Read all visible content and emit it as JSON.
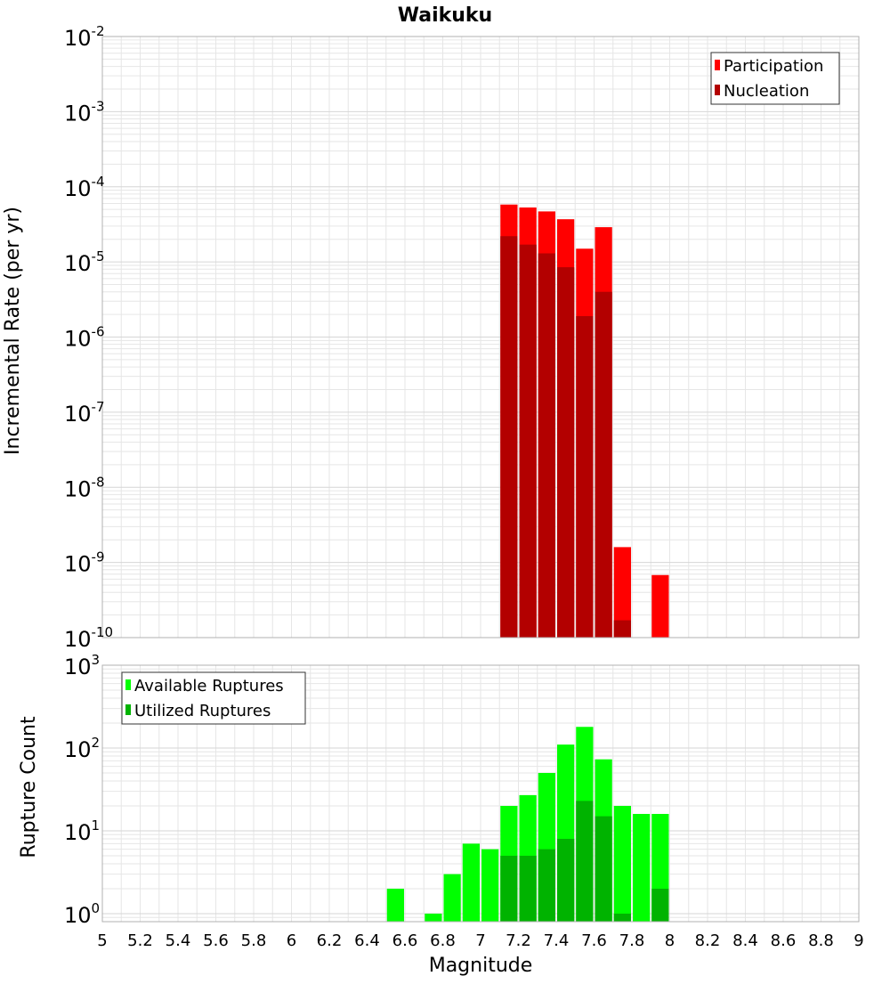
{
  "title": "Waikuku",
  "colors": {
    "participation": "#ff0000",
    "nucleation": "#b30000",
    "available": "#00ff00",
    "utilized": "#00b300",
    "grid": "#e6e6e6",
    "frame": "#b0b0b0"
  },
  "chart_data": [
    {
      "type": "bar",
      "title": "Waikuku",
      "xlabel": "Magnitude",
      "ylabel": "Incremental Rate (per yr)",
      "xlim": [
        5,
        9
      ],
      "ylim": [
        1e-10,
        0.01
      ],
      "yscale": "log",
      "grid": true,
      "legend_position": "top-right",
      "x_ticks": [
        "5",
        "5.2",
        "5.4",
        "5.6",
        "5.8",
        "6",
        "6.2",
        "6.4",
        "6.6",
        "6.8",
        "7",
        "7.2",
        "7.4",
        "7.6",
        "7.8",
        "8",
        "8.2",
        "8.4",
        "8.6",
        "8.8",
        "9"
      ],
      "y_ticks": [
        {
          "base": "10",
          "exp": "-2"
        },
        {
          "base": "10",
          "exp": "-3"
        },
        {
          "base": "10",
          "exp": "-4"
        },
        {
          "base": "10",
          "exp": "-5"
        },
        {
          "base": "10",
          "exp": "-6"
        },
        {
          "base": "10",
          "exp": "-7"
        },
        {
          "base": "10",
          "exp": "-8"
        },
        {
          "base": "10",
          "exp": "-9"
        },
        {
          "base": "10",
          "exp": "-10"
        }
      ],
      "series": [
        {
          "name": "Participation",
          "x": [
            7.15,
            7.25,
            7.35,
            7.45,
            7.55,
            7.65,
            7.75,
            7.95
          ],
          "values": [
            5.8e-05,
            5.3e-05,
            4.7e-05,
            3.7e-05,
            1.5e-05,
            2.9e-05,
            1.6e-09,
            6.8e-10
          ]
        },
        {
          "name": "Nucleation",
          "x": [
            7.15,
            7.25,
            7.35,
            7.45,
            7.55,
            7.65,
            7.75
          ],
          "values": [
            2.2e-05,
            1.7e-05,
            1.3e-05,
            8.5e-06,
            1.9e-06,
            4e-06,
            1.7e-10
          ]
        }
      ]
    },
    {
      "type": "bar",
      "xlabel": "Magnitude",
      "ylabel": "Rupture Count",
      "xlim": [
        5,
        9
      ],
      "ylim": [
        0.8,
        1000
      ],
      "yscale": "log",
      "grid": true,
      "legend_position": "top-left",
      "x_ticks": [
        "5",
        "5.2",
        "5.4",
        "5.6",
        "5.8",
        "6",
        "6.2",
        "6.4",
        "6.6",
        "6.8",
        "7",
        "7.2",
        "7.4",
        "7.6",
        "7.8",
        "8",
        "8.2",
        "8.4",
        "8.6",
        "8.8",
        "9"
      ],
      "y_ticks": [
        {
          "base": "10",
          "exp": "3"
        },
        {
          "base": "10",
          "exp": "2"
        },
        {
          "base": "10",
          "exp": "1"
        },
        {
          "base": "10",
          "exp": "0"
        }
      ],
      "series": [
        {
          "name": "Available Ruptures",
          "x": [
            6.55,
            6.75,
            6.85,
            6.95,
            7.05,
            7.15,
            7.25,
            7.35,
            7.45,
            7.55,
            7.65,
            7.75,
            7.85,
            7.95
          ],
          "values": [
            2,
            1,
            3,
            7,
            6,
            20,
            27,
            50,
            110,
            180,
            73,
            20,
            16,
            16
          ]
        },
        {
          "name": "Utilized Ruptures",
          "x": [
            7.15,
            7.25,
            7.35,
            7.45,
            7.55,
            7.65,
            7.75,
            7.95
          ],
          "values": [
            5,
            5,
            6,
            8,
            23,
            15,
            1,
            2
          ]
        }
      ]
    }
  ]
}
